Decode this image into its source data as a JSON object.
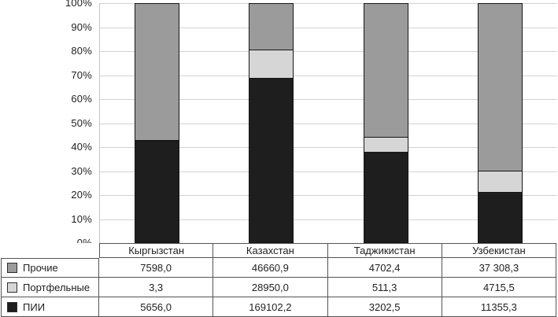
{
  "chart_data": {
    "type": "bar",
    "subtype": "stacked-100-percent",
    "title": "",
    "xlabel": "",
    "ylabel": "",
    "ylim": [
      0,
      100
    ],
    "grid": true,
    "legend_position": "table-left",
    "y_ticks": [
      "100%",
      "90%",
      "80%",
      "70%",
      "60%",
      "50%",
      "40%",
      "30%",
      "20%",
      "10%",
      "0%"
    ],
    "categories": [
      "Кыргызстан",
      "Казахстан",
      "Таджикистан",
      "Узбекистан"
    ],
    "series": [
      {
        "name": "Прочие",
        "color": "#9b9b9b",
        "values": [
          7598.0,
          46660.9,
          4702.4,
          37308.3
        ],
        "labels": [
          "7598,0",
          "46660,9",
          "4702,4",
          "37 308,3"
        ]
      },
      {
        "name": "Портфельные",
        "color": "#d6d6d6",
        "values": [
          3.3,
          28950.0,
          511.3,
          4715.5
        ],
        "labels": [
          "3,3",
          "28950,0",
          "511,3",
          "4715,5"
        ]
      },
      {
        "name": "ПИИ",
        "color": "#1e1e1e",
        "values": [
          5656.0,
          169102.2,
          3202.5,
          11355.3
        ],
        "labels": [
          "5656,0",
          "169102,2",
          "3202,5",
          "11355,3"
        ]
      }
    ],
    "colors": {
      "gridline": "#d2d2d2",
      "axis_line": "#c6c6c6",
      "bar_border": "#161616",
      "table_border": "#545454",
      "text": "#1f1f1f"
    }
  }
}
